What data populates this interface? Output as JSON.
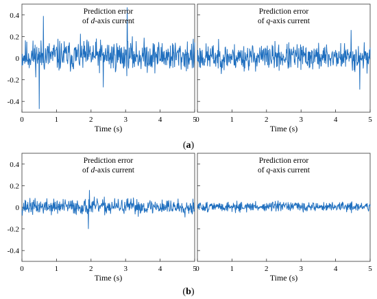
{
  "captions": [
    {
      "open": "(",
      "letter": "a",
      "close": ")"
    },
    {
      "open": "(",
      "letter": "b",
      "close": ")"
    }
  ],
  "series_color": "#1f6fbf",
  "chart_data": [
    {
      "id": "a-left",
      "group": "a",
      "type": "line",
      "title_line1": "Prediction error",
      "title_line2": {
        "pre": "of ",
        "var": "d",
        "post": "-axis current"
      },
      "xlabel": "Time (s)",
      "ylabel": "",
      "xlim": [
        0,
        5
      ],
      "ylim": [
        -0.5,
        0.5
      ],
      "xticks": [
        "0",
        "1",
        "2",
        "3",
        "4",
        "5"
      ],
      "yticks": [
        "-0.4",
        "-0.2",
        "0",
        "0.2",
        "0.4"
      ],
      "ytick_values": [
        -0.4,
        -0.2,
        0,
        0.2,
        0.4
      ],
      "noise": {
        "samples": 500,
        "mean": 0.02,
        "amplitude": 0.09,
        "clip": 0.33,
        "seed": 11
      },
      "spikes": [
        {
          "x": 0.5,
          "y": -0.47
        },
        {
          "x": 0.62,
          "y": 0.39
        },
        {
          "x": 3.05,
          "y": 0.47
        },
        {
          "x": 2.35,
          "y": -0.27
        }
      ]
    },
    {
      "id": "a-right",
      "group": "a",
      "type": "line",
      "title_line1": "Prediction error",
      "title_line2": {
        "pre": "of ",
        "var": "q",
        "post": "-axis current"
      },
      "xlabel": "Time (s)",
      "ylabel": "",
      "xlim": [
        0,
        5
      ],
      "ylim": [
        -0.5,
        0.5
      ],
      "xticks": [
        "0",
        "1",
        "2",
        "3",
        "4",
        "5"
      ],
      "yticks": [],
      "ytick_values": [
        -0.4,
        -0.2,
        0,
        0.2,
        0.4
      ],
      "noise": {
        "samples": 500,
        "mean": 0.01,
        "amplitude": 0.075,
        "clip": 0.26,
        "seed": 23
      },
      "spikes": [
        {
          "x": 4.45,
          "y": 0.26
        },
        {
          "x": 4.7,
          "y": -0.29
        }
      ]
    },
    {
      "id": "b-left",
      "group": "b",
      "type": "line",
      "title_line1": "Prediction error",
      "title_line2": {
        "pre": "of ",
        "var": "d",
        "post": "-axis current"
      },
      "xlabel": "Time (s)",
      "ylabel": "",
      "xlim": [
        0,
        5
      ],
      "ylim": [
        -0.5,
        0.5
      ],
      "xticks": [
        "0",
        "1",
        "2",
        "3",
        "4",
        "5"
      ],
      "yticks": [
        "-0.4",
        "-0.2",
        "0",
        "0.2",
        "0.4"
      ],
      "ytick_values": [
        -0.4,
        -0.2,
        0,
        0.2,
        0.4
      ],
      "noise": {
        "samples": 500,
        "mean": 0.005,
        "amplitude": 0.045,
        "clip": 0.14,
        "seed": 37
      },
      "spikes": [
        {
          "x": 1.95,
          "y": 0.16
        },
        {
          "x": 1.92,
          "y": -0.2
        }
      ]
    },
    {
      "id": "b-right",
      "group": "b",
      "type": "line",
      "title_line1": "Prediction error",
      "title_line2": {
        "pre": "of ",
        "var": "q",
        "post": "-axis current"
      },
      "xlabel": "Time (s)",
      "ylabel": "",
      "xlim": [
        0,
        5
      ],
      "ylim": [
        -0.5,
        0.5
      ],
      "xticks": [
        "0",
        "1",
        "2",
        "3",
        "4",
        "5"
      ],
      "yticks": [],
      "ytick_values": [
        -0.4,
        -0.2,
        0,
        0.2,
        0.4
      ],
      "noise": {
        "samples": 500,
        "mean": 0.005,
        "amplitude": 0.028,
        "clip": 0.07,
        "seed": 51
      },
      "spikes": []
    }
  ]
}
